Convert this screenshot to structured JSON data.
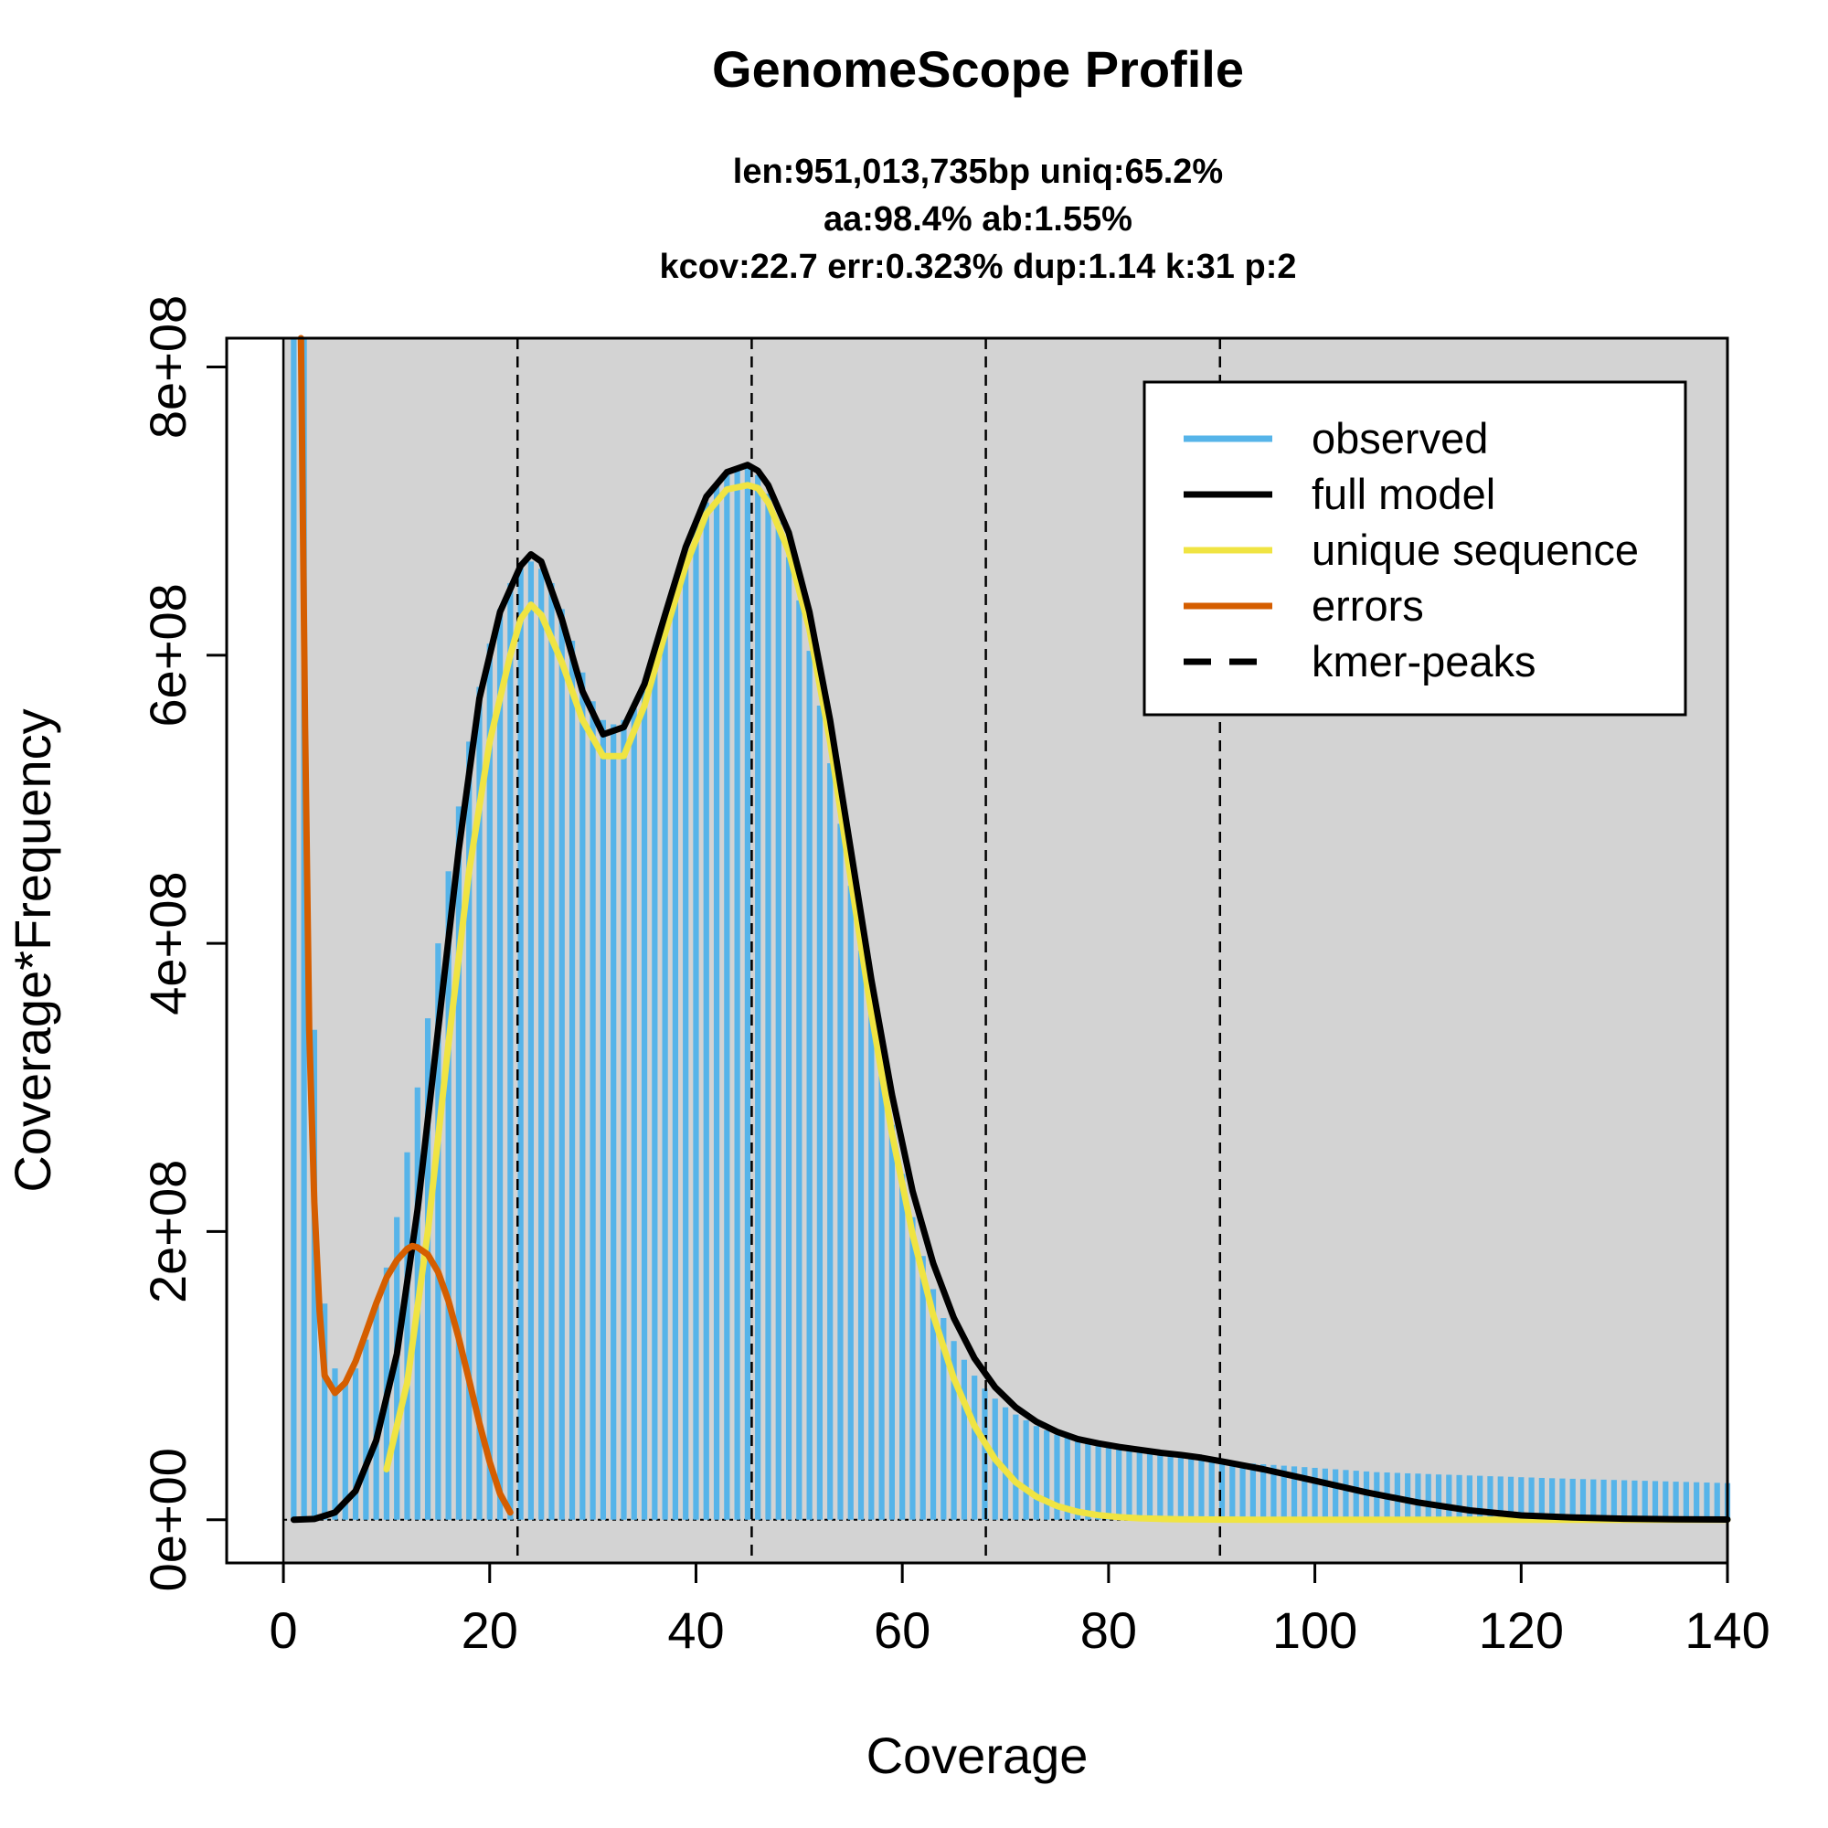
{
  "chart_data": {
    "type": "histogram+line",
    "title": "GenomeScope Profile",
    "subtitle_lines": [
      "len:951,013,735bp uniq:65.2%",
      "aa:98.4% ab:1.55%",
      "kcov:22.7 err:0.323%  dup:1.14  k:31 p:2"
    ],
    "xlabel": "Coverage",
    "ylabel": "Coverage*Frequency",
    "xlim": [
      -5.5,
      140
    ],
    "ylim": [
      -30000000,
      820000000
    ],
    "xticks": [
      0,
      20,
      40,
      60,
      80,
      100,
      120,
      140
    ],
    "xtick_labels": [
      "0",
      "20",
      "40",
      "60",
      "80",
      "100",
      "120",
      "140"
    ],
    "yticks": [
      0,
      200000000,
      400000000,
      600000000,
      800000000
    ],
    "ytick_labels": [
      "0e+00",
      "2e+08",
      "4e+08",
      "6e+08",
      "8e+08"
    ],
    "background": "#d3d3d3",
    "grid": false,
    "legend_position": "top-right",
    "kmer_peaks": [
      22.7,
      45.4,
      68.1,
      90.8
    ],
    "observed": {
      "name": "observed",
      "color": "#56b4e9",
      "x": [
        1,
        2,
        3,
        4,
        5,
        6,
        7,
        8,
        9,
        10,
        11,
        12,
        13,
        14,
        15,
        16,
        17,
        18,
        19,
        20,
        21,
        22,
        23,
        24,
        25,
        26,
        27,
        28,
        29,
        30,
        31,
        32,
        33,
        34,
        35,
        36,
        37,
        38,
        39,
        40,
        41,
        42,
        43,
        44,
        45,
        46,
        47,
        48,
        49,
        50,
        51,
        52,
        53,
        54,
        55,
        56,
        57,
        58,
        59,
        60,
        61,
        62,
        63,
        64,
        65,
        66,
        67,
        68,
        69,
        70,
        71,
        72,
        73,
        74,
        75,
        76,
        77,
        78,
        79,
        80,
        81,
        82,
        83,
        84,
        85,
        86,
        87,
        88,
        89,
        90,
        91,
        92,
        93,
        94,
        95,
        96,
        97,
        98,
        99,
        100,
        101,
        102,
        103,
        104,
        105,
        106,
        107,
        108,
        109,
        110,
        111,
        112,
        113,
        114,
        115,
        116,
        117,
        118,
        119,
        120,
        121,
        122,
        123,
        124,
        125,
        126,
        127,
        128,
        129,
        130,
        131,
        132,
        133,
        134,
        135,
        136,
        137,
        138,
        139,
        140
      ],
      "y": [
        820000000,
        820000000,
        340000000,
        150000000,
        105000000,
        95000000,
        105000000,
        125000000,
        150000000,
        175000000,
        210000000,
        255000000,
        300000000,
        348000000,
        400000000,
        450000000,
        495000000,
        540000000,
        578000000,
        608000000,
        632000000,
        650000000,
        662000000,
        665000000,
        660000000,
        650000000,
        632000000,
        610000000,
        588000000,
        568000000,
        555000000,
        552000000,
        555000000,
        563000000,
        575000000,
        595000000,
        620000000,
        646000000,
        670000000,
        690000000,
        706000000,
        718000000,
        726000000,
        730000000,
        730000000,
        725000000,
        712000000,
        692000000,
        668000000,
        638000000,
        603000000,
        565000000,
        525000000,
        483000000,
        440000000,
        395000000,
        353000000,
        312000000,
        274000000,
        240000000,
        210000000,
        183000000,
        160000000,
        140000000,
        124000000,
        111000000,
        100000000,
        91000000,
        84000000,
        78000000,
        73000000,
        69000000,
        65000000,
        62000000,
        59000000,
        57000000,
        55000000,
        53000000,
        51000000,
        50000000,
        49000000,
        48000000,
        47000000,
        46000000,
        45000000,
        44000000,
        43500000,
        43000000,
        42000000,
        41500000,
        41000000,
        40000000,
        39500000,
        39000000,
        38500000,
        38000000,
        37500000,
        37000000,
        36500000,
        36000000,
        35500000,
        35000000,
        34500000,
        34000000,
        33500000,
        33000000,
        32800000,
        32500000,
        32200000,
        32000000,
        31700000,
        31400000,
        31200000,
        31000000,
        30700000,
        30500000,
        30200000,
        30000000,
        29800000,
        29500000,
        29300000,
        29000000,
        28800000,
        28600000,
        28400000,
        28200000,
        28000000,
        27800000,
        27600000,
        27400000,
        27200000,
        27000000,
        26800000,
        26600000,
        26400000,
        26200000,
        26000000,
        25800000,
        25600000,
        25400000
      ]
    },
    "series": [
      {
        "name": "full model",
        "color": "#000000",
        "x": [
          1,
          3,
          5,
          7,
          9,
          11,
          13,
          15,
          17,
          19,
          21,
          23,
          24,
          25,
          27,
          29,
          31,
          33,
          35,
          37,
          39,
          41,
          43,
          45,
          46,
          47,
          49,
          51,
          53,
          55,
          57,
          59,
          61,
          63,
          65,
          67,
          69,
          71,
          73,
          75,
          77,
          79,
          81,
          83,
          85,
          87,
          89,
          91,
          95,
          100,
          105,
          110,
          115,
          120,
          125,
          130,
          135,
          140
        ],
        "y": [
          0,
          500000,
          5000000,
          20000000,
          55000000,
          115000000,
          215000000,
          340000000,
          465000000,
          570000000,
          630000000,
          662000000,
          670000000,
          665000000,
          625000000,
          575000000,
          545000000,
          550000000,
          580000000,
          628000000,
          675000000,
          710000000,
          727000000,
          732000000,
          728000000,
          718000000,
          685000000,
          630000000,
          555000000,
          465000000,
          375000000,
          295000000,
          228000000,
          178000000,
          140000000,
          112000000,
          92000000,
          78000000,
          68000000,
          61000000,
          56000000,
          53000000,
          50500000,
          48500000,
          46500000,
          45000000,
          43000000,
          40500000,
          35000000,
          27000000,
          19000000,
          12000000,
          6500000,
          3000000,
          1500000,
          700000,
          300000,
          100000
        ]
      },
      {
        "name": "unique sequence",
        "color": "#f0e442",
        "x": [
          10,
          12,
          14,
          16,
          18,
          20,
          22,
          23,
          24,
          25,
          27,
          29,
          31,
          33,
          35,
          37,
          39,
          41,
          43,
          45,
          46,
          47,
          49,
          51,
          53,
          55,
          57,
          59,
          61,
          63,
          65,
          67,
          69,
          71,
          73,
          75,
          77,
          79,
          81,
          83,
          85,
          87,
          90,
          95,
          100,
          110,
          120,
          130,
          140
        ],
        "y": [
          35000000,
          95000000,
          200000000,
          330000000,
          450000000,
          540000000,
          600000000,
          625000000,
          635000000,
          628000000,
          595000000,
          555000000,
          530000000,
          530000000,
          565000000,
          615000000,
          662000000,
          698000000,
          715000000,
          718000000,
          716000000,
          706000000,
          672000000,
          618000000,
          540000000,
          445000000,
          352000000,
          268000000,
          198000000,
          142000000,
          98000000,
          65000000,
          42000000,
          26000000,
          16000000,
          9500000,
          5500000,
          3200000,
          1800000,
          1000000,
          600000,
          300000,
          100000,
          0,
          0,
          0,
          0,
          0,
          0
        ]
      },
      {
        "name": "errors",
        "color": "#d55e00",
        "x": [
          1.7,
          2.1,
          2.5,
          3,
          3.5,
          4,
          5,
          6,
          7,
          8,
          9,
          10,
          11,
          12,
          12.5,
          13,
          14,
          15,
          16,
          17,
          18,
          19,
          20,
          21,
          22
        ],
        "y": [
          820000000,
          550000000,
          340000000,
          220000000,
          145000000,
          100000000,
          88000000,
          95000000,
          110000000,
          130000000,
          150000000,
          168000000,
          180000000,
          188000000,
          190000000,
          189000000,
          184000000,
          172000000,
          152000000,
          126000000,
          97000000,
          67000000,
          40000000,
          18000000,
          5000000
        ]
      }
    ],
    "legend": [
      {
        "label": "observed",
        "color": "#56b4e9",
        "style": "solid"
      },
      {
        "label": "full model",
        "color": "#000000",
        "style": "solid"
      },
      {
        "label": "unique sequence",
        "color": "#f0e442",
        "style": "solid"
      },
      {
        "label": "errors",
        "color": "#d55e00",
        "style": "solid"
      },
      {
        "label": "kmer-peaks",
        "color": "#000000",
        "style": "dashed"
      }
    ]
  }
}
